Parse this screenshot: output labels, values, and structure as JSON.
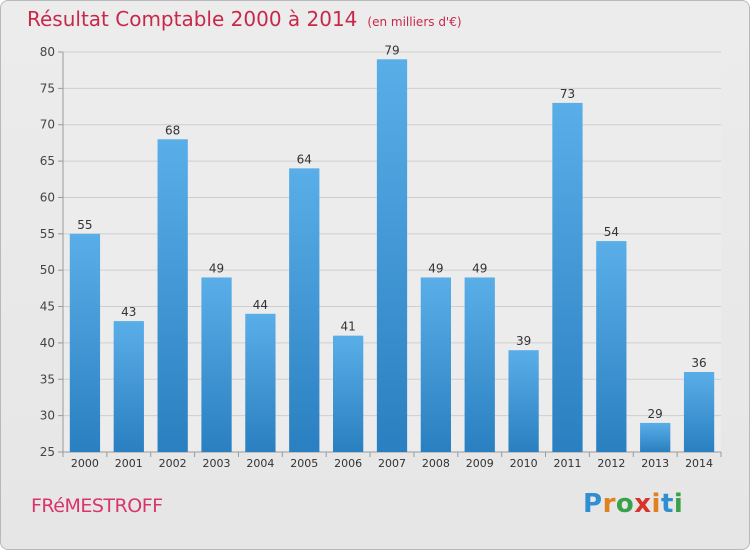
{
  "chart_data": {
    "type": "bar",
    "title": "Résultat Comptable 2000 à 2014",
    "subtitle": "(en milliers d'€)",
    "xlabel": "",
    "ylabel": "",
    "categories": [
      "2000",
      "2001",
      "2002",
      "2003",
      "2004",
      "2005",
      "2006",
      "2007",
      "2008",
      "2009",
      "2010",
      "2011",
      "2012",
      "2013",
      "2014"
    ],
    "values": [
      55,
      43,
      68,
      49,
      44,
      64,
      41,
      79,
      49,
      49,
      39,
      73,
      54,
      29,
      36
    ],
    "ylim": [
      25,
      80
    ],
    "yticks": [
      25,
      30,
      35,
      40,
      45,
      50,
      55,
      60,
      65,
      70,
      75,
      80
    ],
    "grid": true,
    "bar_color": "#3d96d8"
  },
  "footer": {
    "town": "FRéMESTROFF",
    "logo_letters": [
      "P",
      "r",
      "o",
      "x",
      "i",
      "t",
      "i"
    ],
    "logo_colors": [
      "#2f8fd0",
      "#e0801f",
      "#3aa04a",
      "#d8342a",
      "#e0801f",
      "#2f8fd0",
      "#3aa04a"
    ]
  }
}
